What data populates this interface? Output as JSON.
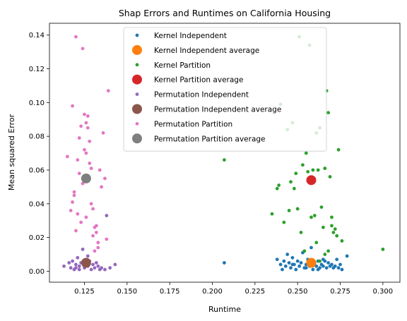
{
  "chart_data": {
    "type": "scatter",
    "title": "Shap Errors and Runtimes on California Housing",
    "xlabel": "Runtime",
    "ylabel": "Mean squared Error",
    "xlim": [
      0.1045,
      0.31
    ],
    "ylim": [
      -0.0065,
      0.147
    ],
    "xticks": [
      "0.125",
      "0.150",
      "0.175",
      "0.200",
      "0.225",
      "0.250",
      "0.275",
      "0.300"
    ],
    "yticks": [
      "0.00",
      "0.02",
      "0.04",
      "0.06",
      "0.08",
      "0.10",
      "0.12",
      "0.14"
    ],
    "xtick_values": [
      0.125,
      0.15,
      0.175,
      0.2,
      0.225,
      0.25,
      0.275,
      0.3
    ],
    "ytick_values": [
      0,
      0.02,
      0.04,
      0.06,
      0.08,
      0.1,
      0.12,
      0.14
    ],
    "grid": false,
    "legend_position": "top-center",
    "series": [
      {
        "name": "Kernel Independent",
        "color": "#1f77b4",
        "marker": "small",
        "points": [
          [
            0.207,
            0.005
          ],
          [
            0.238,
            0.007
          ],
          [
            0.24,
            0.004
          ],
          [
            0.241,
            0.001
          ],
          [
            0.242,
            0.006
          ],
          [
            0.243,
            0.003
          ],
          [
            0.244,
            0.01
          ],
          [
            0.245,
            0.005
          ],
          [
            0.246,
            0.002
          ],
          [
            0.247,
            0.008
          ],
          [
            0.248,
            0.004
          ],
          [
            0.249,
            0.001
          ],
          [
            0.25,
            0.006
          ],
          [
            0.251,
            0.003
          ],
          [
            0.252,
            0.005
          ],
          [
            0.253,
            0.011
          ],
          [
            0.254,
            0.002
          ],
          [
            0.255,
            0.004
          ],
          [
            0.256,
            0.007
          ],
          [
            0.257,
            0.003
          ],
          [
            0.258,
            0.014
          ],
          [
            0.259,
            0.001
          ],
          [
            0.26,
            0.005
          ],
          [
            0.261,
            0.003
          ],
          [
            0.262,
            0.006
          ],
          [
            0.263,
            0.002
          ],
          [
            0.264,
            0.004
          ],
          [
            0.265,
            0.003
          ],
          [
            0.266,
            0.006
          ],
          [
            0.267,
            0.002
          ],
          [
            0.268,
            0.005
          ],
          [
            0.269,
            0.003
          ],
          [
            0.27,
            0.004
          ],
          [
            0.271,
            0.002
          ],
          [
            0.272,
            0.003
          ],
          [
            0.273,
            0.007
          ],
          [
            0.274,
            0.002
          ],
          [
            0.275,
            0.004
          ],
          [
            0.276,
            0.001
          ],
          [
            0.279,
            0.009
          ],
          [
            0.262,
            0.001
          ],
          [
            0.255,
            0.002
          ],
          [
            0.247,
            0.004
          ],
          [
            0.265,
            0.007
          ]
        ]
      },
      {
        "name": "Kernel Independent average",
        "color": "#ff7f0e",
        "marker": "large",
        "points": [
          [
            0.258,
            0.005
          ]
        ]
      },
      {
        "name": "Kernel Partition",
        "color": "#2ca02c",
        "marker": "small",
        "points": [
          [
            0.207,
            0.066
          ],
          [
            0.235,
            0.034
          ],
          [
            0.238,
            0.049
          ],
          [
            0.239,
            0.051
          ],
          [
            0.24,
            0.099
          ],
          [
            0.242,
            0.029
          ],
          [
            0.244,
            0.084
          ],
          [
            0.245,
            0.036
          ],
          [
            0.246,
            0.053
          ],
          [
            0.247,
            0.088
          ],
          [
            0.248,
            0.049
          ],
          [
            0.249,
            0.058
          ],
          [
            0.25,
            0.037
          ],
          [
            0.251,
            0.139
          ],
          [
            0.252,
            0.023
          ],
          [
            0.253,
            0.063
          ],
          [
            0.254,
            0.012
          ],
          [
            0.255,
            0.07
          ],
          [
            0.256,
            0.059
          ],
          [
            0.257,
            0.134
          ],
          [
            0.258,
            0.032
          ],
          [
            0.259,
            0.06
          ],
          [
            0.26,
            0.033
          ],
          [
            0.261,
            0.082
          ],
          [
            0.262,
            0.06
          ],
          [
            0.263,
            0.085
          ],
          [
            0.264,
            0.038
          ],
          [
            0.265,
            0.026
          ],
          [
            0.266,
            0.061
          ],
          [
            0.267,
            0.107
          ],
          [
            0.268,
            0.094
          ],
          [
            0.269,
            0.056
          ],
          [
            0.27,
            0.027
          ],
          [
            0.271,
            0.023
          ],
          [
            0.272,
            0.025
          ],
          [
            0.273,
            0.021
          ],
          [
            0.274,
            0.072
          ],
          [
            0.276,
            0.018
          ],
          [
            0.3,
            0.013
          ],
          [
            0.268,
            0.012
          ],
          [
            0.266,
            0.01
          ],
          [
            0.261,
            0.017
          ],
          [
            0.27,
            0.032
          ],
          [
            0.263,
            0.006
          ]
        ]
      },
      {
        "name": "Kernel Partition average",
        "color": "#d62728",
        "marker": "large",
        "points": [
          [
            0.258,
            0.054
          ]
        ]
      },
      {
        "name": "Permutation Independent",
        "color": "#9467bd",
        "marker": "small",
        "points": [
          [
            0.113,
            0.003
          ],
          [
            0.116,
            0.005
          ],
          [
            0.117,
            0.002
          ],
          [
            0.118,
            0.006
          ],
          [
            0.119,
            0.001
          ],
          [
            0.12,
            0.004
          ],
          [
            0.121,
            0.008
          ],
          [
            0.122,
            0.003
          ],
          [
            0.123,
            0.005
          ],
          [
            0.124,
            0.013
          ],
          [
            0.125,
            0.002
          ],
          [
            0.126,
            0.007
          ],
          [
            0.127,
            0.003
          ],
          [
            0.128,
            0.006
          ],
          [
            0.129,
            0.001
          ],
          [
            0.13,
            0.004
          ],
          [
            0.131,
            0.002
          ],
          [
            0.132,
            0.005
          ],
          [
            0.133,
            0.003
          ],
          [
            0.134,
            0.001
          ],
          [
            0.135,
            0.002
          ],
          [
            0.137,
            0.001
          ],
          [
            0.138,
            0.033
          ],
          [
            0.14,
            0.002
          ],
          [
            0.143,
            0.004
          ],
          [
            0.122,
            0.001
          ],
          [
            0.127,
            0.009
          ],
          [
            0.12,
            0.002
          ]
        ]
      },
      {
        "name": "Permutation Independent average",
        "color": "#8c564b",
        "marker": "large",
        "points": [
          [
            0.126,
            0.005
          ]
        ]
      },
      {
        "name": "Permutation Partition",
        "color": "#e377c2",
        "marker": "small",
        "points": [
          [
            0.115,
            0.068
          ],
          [
            0.117,
            0.036
          ],
          [
            0.118,
            0.098
          ],
          [
            0.119,
            0.047
          ],
          [
            0.12,
            0.139
          ],
          [
            0.121,
            0.066
          ],
          [
            0.122,
            0.079
          ],
          [
            0.123,
            0.086
          ],
          [
            0.124,
            0.132
          ],
          [
            0.125,
            0.093
          ],
          [
            0.126,
            0.07
          ],
          [
            0.127,
            0.085
          ],
          [
            0.128,
            0.077
          ],
          [
            0.129,
            0.061
          ],
          [
            0.13,
            0.037
          ],
          [
            0.131,
            0.026
          ],
          [
            0.132,
            0.023
          ],
          [
            0.133,
            0.017
          ],
          [
            0.134,
            0.06
          ],
          [
            0.135,
            0.05
          ],
          [
            0.136,
            0.082
          ],
          [
            0.137,
            0.055
          ],
          [
            0.138,
            0.019
          ],
          [
            0.139,
            0.107
          ],
          [
            0.119,
            0.045
          ],
          [
            0.121,
            0.034
          ],
          [
            0.123,
            0.029
          ],
          [
            0.125,
            0.072
          ],
          [
            0.127,
            0.092
          ],
          [
            0.129,
            0.04
          ],
          [
            0.131,
            0.012
          ],
          [
            0.133,
            0.014
          ],
          [
            0.122,
            0.058
          ],
          [
            0.126,
            0.088
          ],
          [
            0.128,
            0.064
          ],
          [
            0.124,
            0.052
          ],
          [
            0.12,
            0.024
          ],
          [
            0.132,
            0.027
          ],
          [
            0.118,
            0.041
          ],
          [
            0.13,
            0.021
          ],
          [
            0.126,
            0.032
          ]
        ]
      },
      {
        "name": "Permutation Partition average",
        "color": "#7f7f7f",
        "marker": "large",
        "points": [
          [
            0.126,
            0.055
          ]
        ]
      }
    ]
  }
}
